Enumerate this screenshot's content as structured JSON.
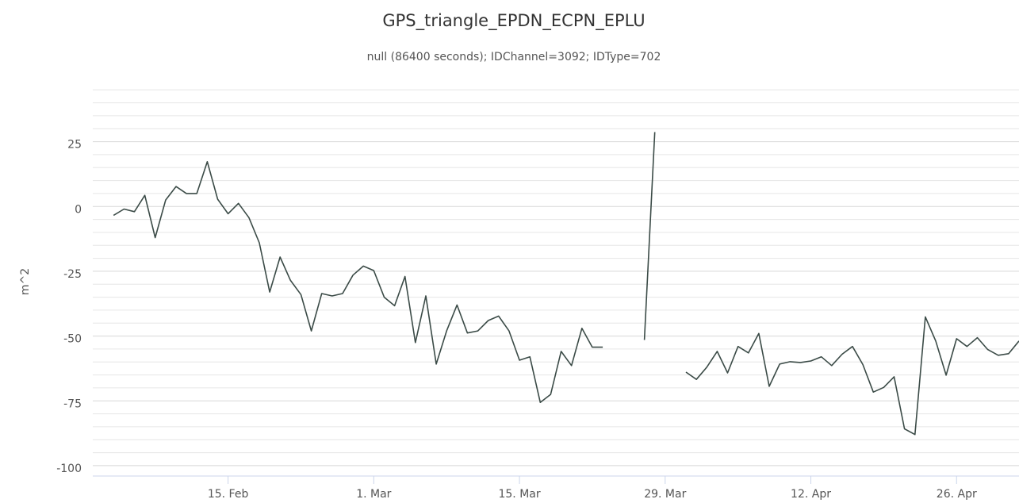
{
  "chart_data": {
    "type": "line",
    "title": "GPS_triangle_EPDN_ECPN_EPLU",
    "subtitle": "null (86400 seconds); IDChannel=3092; IDType=702",
    "y_label": "m^2",
    "color": "#3b4b47",
    "x": [
      "02-04",
      "02-05",
      "02-06",
      "02-07",
      "02-08",
      "02-09",
      "02-10",
      "02-11",
      "02-12",
      "02-13",
      "02-14",
      "02-15",
      "02-16",
      "02-17",
      "02-18",
      "02-19",
      "02-20",
      "02-21",
      "02-22",
      "02-23",
      "02-24",
      "02-25",
      "02-26",
      "02-27",
      "02-28",
      "03-01",
      "03-02",
      "03-03",
      "03-04",
      "03-05",
      "03-06",
      "03-07",
      "03-08",
      "03-09",
      "03-10",
      "03-11",
      "03-12",
      "03-13",
      "03-14",
      "03-15",
      "03-16",
      "03-17",
      "03-18",
      "03-19",
      "03-20",
      "03-21",
      "03-22",
      "03-23",
      "03-24",
      "03-25",
      "03-26",
      "03-27",
      "03-28",
      "03-29",
      "03-30",
      "03-31",
      "04-01",
      "04-02",
      "04-03",
      "04-04",
      "04-05",
      "04-06",
      "04-07",
      "04-08",
      "04-09",
      "04-10",
      "04-11",
      "04-12",
      "04-13",
      "04-14",
      "04-15",
      "04-16",
      "04-17",
      "04-18",
      "04-19",
      "04-20",
      "04-21",
      "04-22",
      "04-23",
      "04-24",
      "04-25",
      "04-26",
      "04-27",
      "04-28",
      "04-29",
      "04-30",
      "05-01",
      "05-02"
    ],
    "values": [
      -3.4,
      -1,
      -2,
      4.3,
      -12,
      2.5,
      7.7,
      5,
      5,
      17.3,
      2.8,
      -2.8,
      1.2,
      -4.3,
      -14,
      -33,
      -19.5,
      -28.5,
      -34,
      -48,
      -33.6,
      -34.5,
      -33.6,
      -26.5,
      -23,
      -24.7,
      -35,
      -38.3,
      -27,
      -52.5,
      -34.5,
      -60.8,
      -48,
      -38,
      -48.8,
      -48,
      -44,
      -42.3,
      -48,
      -59.3,
      -58,
      -75.6,
      -72.5,
      -55.9,
      -61.4,
      -47,
      -54.3,
      -54.3,
      null,
      null,
      null,
      -51.5,
      28.7,
      null,
      null,
      -63.9,
      -66.7,
      -62,
      -55.9,
      -64.2,
      -54,
      -56.5,
      -49,
      -69.4,
      -60.8,
      -59.9,
      -60.2,
      -59.6,
      -58,
      -61.4,
      -57,
      -54,
      -61,
      -71.6,
      -69.8,
      -65.7,
      -85.8,
      -88,
      -42.6,
      -51.9,
      -65.1,
      -51,
      -54,
      -50.6,
      -55.2,
      -57.4,
      -56.8,
      -51.9
    ],
    "xlim": [
      "02-02",
      "05-02"
    ],
    "xticks": [
      {
        "value": "02-15",
        "label": "15. Feb"
      },
      {
        "value": "03-01",
        "label": "1. Mar"
      },
      {
        "value": "03-15",
        "label": "15. Mar"
      },
      {
        "value": "03-29",
        "label": "29. Mar"
      },
      {
        "value": "04-12",
        "label": "12. Apr"
      },
      {
        "value": "04-26",
        "label": "26. Apr"
      }
    ],
    "ylim": [
      -104,
      46
    ],
    "yticks": [
      -100,
      -75,
      -50,
      -25,
      0,
      25
    ],
    "grid": true,
    "minor_grid": true
  }
}
